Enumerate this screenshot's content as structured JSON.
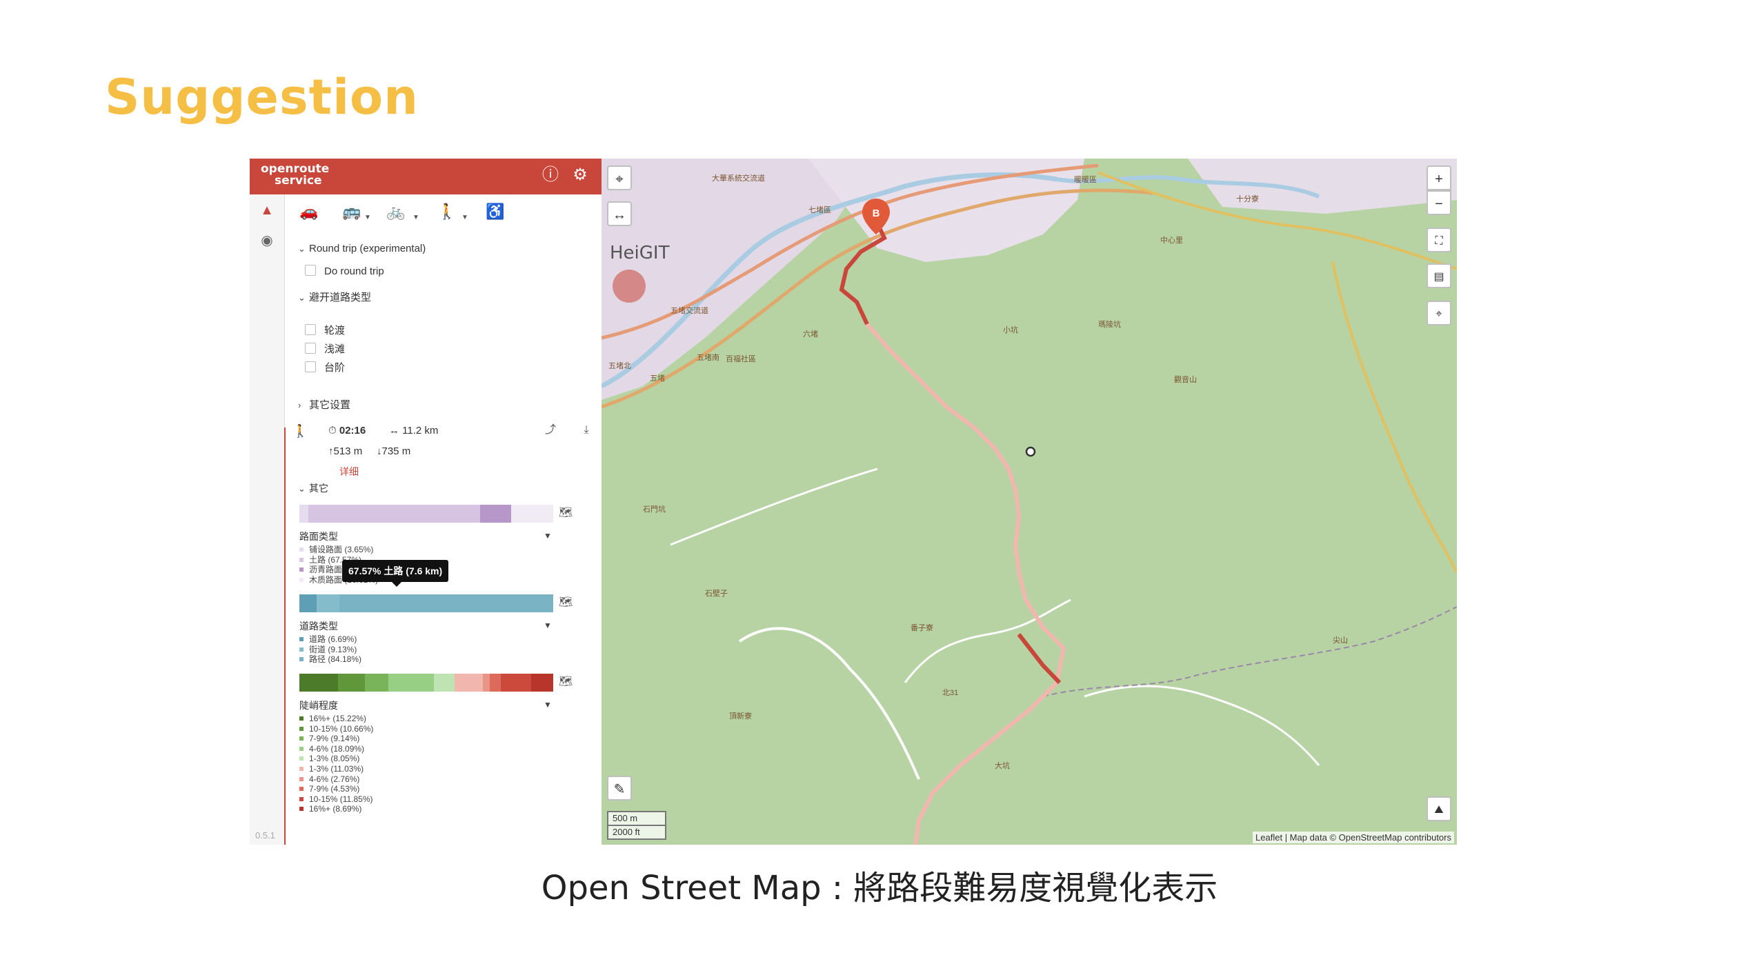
{
  "slide": {
    "title": "Suggestion",
    "caption": "Open Street Map : 將路段難易度視覺化表示"
  },
  "header": {
    "logo_line1": "openroute",
    "logo_line2": "service",
    "info_icon": "info-icon",
    "settings_icon": "gear-icon",
    "color": "#c8463a"
  },
  "sidebar": {
    "version": "0.5.1"
  },
  "profiles": [
    {
      "name": "car",
      "icon": "car-icon"
    },
    {
      "name": "bus",
      "icon": "bus-icon"
    },
    {
      "name": "bike",
      "icon": "bike-icon"
    },
    {
      "name": "walking",
      "icon": "walking-icon",
      "active": true
    },
    {
      "name": "wheelchair",
      "icon": "wheelchair-icon"
    }
  ],
  "options": {
    "round_trip_heading": "Round trip (experimental)",
    "do_round_trip": "Do round trip",
    "avoid_heading": "避开道路类型",
    "avoid_items": [
      "轮渡",
      "浅滩",
      "台阶"
    ],
    "other_settings": "其它设置"
  },
  "route_summary": {
    "duration": "02:16",
    "distance": "11.2 km",
    "ascent": "513 m",
    "descent": "735 m",
    "details_link": "详细",
    "extra_heading": "其它"
  },
  "tooltip": {
    "text": "67.57% 土路 (7.6 km)"
  },
  "surface": {
    "label": "路面类型",
    "segments": [
      {
        "label": "铺设路面 (3.65%)",
        "color": "#e6dcef",
        "value": 3.65
      },
      {
        "label": "土路 (67.57%)",
        "color": "#d7c4e3",
        "value": 67.57
      },
      {
        "label": "沥青路面 (12.16%)",
        "color": "#b797ca",
        "value": 12.16
      },
      {
        "label": "木质路面 (16.61%)",
        "color": "#f1ebf6",
        "value": 16.61
      }
    ]
  },
  "waytype": {
    "label": "道路类型",
    "segments": [
      {
        "label": "道路 (6.69%)",
        "color": "#5f9fb5",
        "value": 6.69
      },
      {
        "label": "街道 (9.13%)",
        "color": "#85bccb",
        "value": 9.13
      },
      {
        "label": "路径 (84.18%)",
        "color": "#7ab3c4",
        "value": 84.18
      }
    ]
  },
  "steepness": {
    "label": "陡峭程度",
    "segments": [
      {
        "label": "16%+ (15.22%)",
        "color": "#4c7c2a",
        "value": 15.22
      },
      {
        "label": "10-15% (10.66%)",
        "color": "#5f973a",
        "value": 10.66
      },
      {
        "label": "7-9% (9.14%)",
        "color": "#79b45a",
        "value": 9.14
      },
      {
        "label": "4-6% (18.09%)",
        "color": "#97cf84",
        "value": 18.09
      },
      {
        "label": "1-3% (8.05%)",
        "color": "#c0e3b4",
        "value": 8.05
      },
      {
        "label": "1-3% (11.03%)",
        "color": "#f1b7ae",
        "value": 11.03
      },
      {
        "label": "4-6% (2.76%)",
        "color": "#e89588",
        "value": 2.76
      },
      {
        "label": "7-9% (4.53%)",
        "color": "#dd6b5c",
        "value": 4.53
      },
      {
        "label": "10-15% (11.85%)",
        "color": "#cc4a3c",
        "value": 11.85
      },
      {
        "label": "16%+ (8.69%)",
        "color": "#b8352b",
        "value": 8.69
      }
    ]
  },
  "map": {
    "zoom_in": "+",
    "zoom_out": "−",
    "scale_m": "500 m",
    "scale_ft": "2000 ft",
    "attribution": "Leaflet | Map data © OpenStreetMap contributors",
    "marker_b": "B",
    "watermark": "HeiGIT",
    "labels": [
      "七堵區",
      "暖暖區",
      "大華系統交流道",
      "五堵交流道",
      "百福社區",
      "五堵北",
      "五堵南",
      "五堵",
      "六堵",
      "小坑",
      "石門坑",
      "石壁子",
      "頂新寮",
      "大坑",
      "番子寮",
      "北31",
      "觀音山",
      "瑪陵坑",
      "尖山",
      "十分寮",
      "中心里"
    ],
    "route_color": "#c8463a"
  }
}
